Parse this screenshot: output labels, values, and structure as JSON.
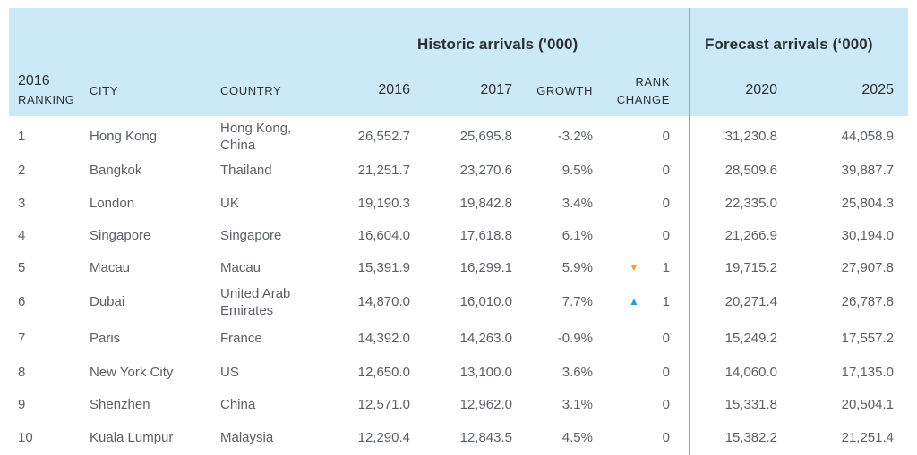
{
  "header": {
    "historic_title": "Historic arrivals ('000)",
    "forecast_title": "Forecast arrivals (‘000)",
    "ranking_line1": "2016",
    "ranking_line2": "RANKING",
    "city": "CITY",
    "country": "COUNTRY",
    "y2016": "2016",
    "y2017": "2017",
    "growth": "GROWTH",
    "rank_change_line1": "RANK",
    "rank_change_line2": "CHANGE",
    "y2020": "2020",
    "y2025": "2025"
  },
  "rows": [
    {
      "rank": "1",
      "city": "Hong Kong",
      "country1": "Hong Kong,",
      "country2": "China",
      "v2016": "26,552.7",
      "v2017": "25,695.8",
      "growth": "-3.2%",
      "arrow": "",
      "change": "0",
      "v2020": "31,230.8",
      "v2025": "44,058.9"
    },
    {
      "rank": "2",
      "city": "Bangkok",
      "country1": "Thailand",
      "country2": "",
      "v2016": "21,251.7",
      "v2017": "23,270.6",
      "growth": "9.5%",
      "arrow": "",
      "change": "0",
      "v2020": "28,509.6",
      "v2025": "39,887.7"
    },
    {
      "rank": "3",
      "city": "London",
      "country1": "UK",
      "country2": "",
      "v2016": "19,190.3",
      "v2017": "19,842.8",
      "growth": "3.4%",
      "arrow": "",
      "change": "0",
      "v2020": "22,335.0",
      "v2025": "25,804.3"
    },
    {
      "rank": "4",
      "city": "Singapore",
      "country1": "Singapore",
      "country2": "",
      "v2016": "16,604.0",
      "v2017": "17,618.8",
      "growth": "6.1%",
      "arrow": "",
      "change": "0",
      "v2020": "21,266.9",
      "v2025": "30,194.0"
    },
    {
      "rank": "5",
      "city": "Macau",
      "country1": "Macau",
      "country2": "",
      "v2016": "15,391.9",
      "v2017": "16,299.1",
      "growth": "5.9%",
      "arrow": "down",
      "change": "1",
      "v2020": "19,715.2",
      "v2025": "27,907.8"
    },
    {
      "rank": "6",
      "city": "Dubai",
      "country1": "United Arab",
      "country2": "Emirates",
      "v2016": "14,870.0",
      "v2017": "16,010.0",
      "growth": "7.7%",
      "arrow": "up",
      "change": "1",
      "v2020": "20,271.4",
      "v2025": "26,787.8"
    },
    {
      "rank": "7",
      "city": "Paris",
      "country1": "France",
      "country2": "",
      "v2016": "14,392.0",
      "v2017": "14,263.0",
      "growth": "-0.9%",
      "arrow": "",
      "change": "0",
      "v2020": "15,249.2",
      "v2025": "17,557.2"
    },
    {
      "rank": "8",
      "city": "New York City",
      "country1": "US",
      "country2": "",
      "v2016": "12,650.0",
      "v2017": "13,100.0",
      "growth": "3.6%",
      "arrow": "",
      "change": "0",
      "v2020": "14,060.0",
      "v2025": "17,135.0"
    },
    {
      "rank": "9",
      "city": "Shenzhen",
      "country1": "China",
      "country2": "",
      "v2016": "12,571.0",
      "v2017": "12,962.0",
      "growth": "3.1%",
      "arrow": "",
      "change": "0",
      "v2020": "15,331.8",
      "v2025": "20,504.1"
    },
    {
      "rank": "10",
      "city": "Kuala Lumpur",
      "country1": "Malaysia",
      "country2": "",
      "v2016": "12,290.4",
      "v2017": "12,843.5",
      "growth": "4.5%",
      "arrow": "",
      "change": "0",
      "v2020": "15,382.2",
      "v2025": "21,251.4"
    }
  ]
}
